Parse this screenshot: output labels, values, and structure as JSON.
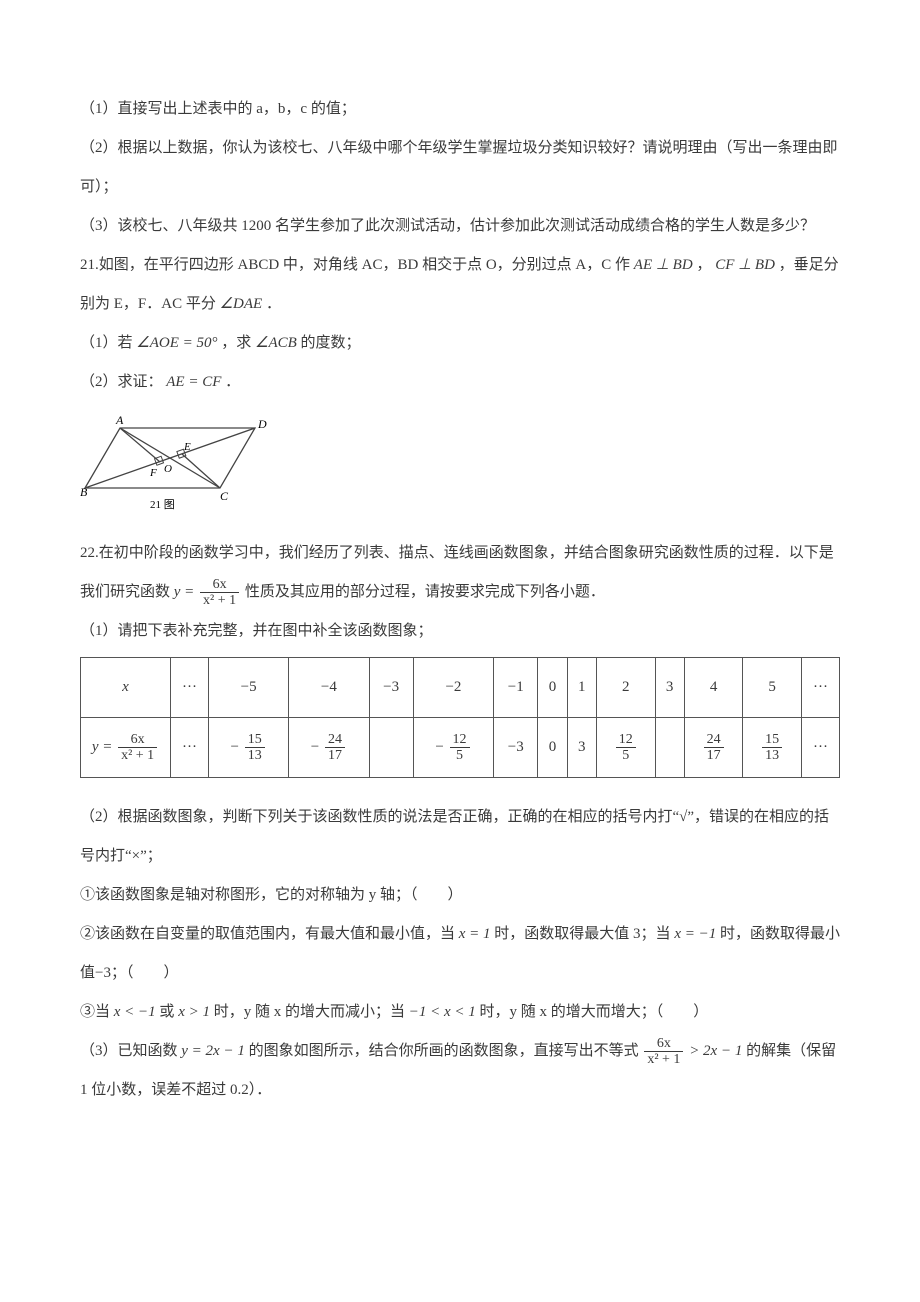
{
  "q20": {
    "p1": "（1）直接写出上述表中的 a，b，c 的值；",
    "p2": "（2）根据以上数据，你认为该校七、八年级中哪个年级学生掌握垃圾分类知识较好？请说明理由（写出一条理由即可）；",
    "p3": "（3）该校七、八年级共 1200 名学生参加了此次测试活动，估计参加此次测试活动成绩合格的学生人数是多少？"
  },
  "q21": {
    "intro_a": "21.如图，在平行四边形 ABCD 中，对角线 AC，BD 相交于点 O，分别过点 A，C 作 ",
    "intro_m1": "AE ⊥ BD",
    "intro_sep": "，",
    "intro_m2": "CF ⊥ BD",
    "intro_b": "，垂足分别为 E，F．AC 平分 ",
    "intro_m3": "∠DAE",
    "intro_end": "．",
    "p1a": "（1）若 ",
    "p1m": "∠AOE = 50°",
    "p1b": "，求 ",
    "p1m2": "∠ACB",
    "p1c": " 的度数；",
    "p2a": "（2）求证：",
    "p2m": "AE = CF",
    "p2b": "．",
    "diagram_label": "21 图"
  },
  "q22": {
    "intro_a": "22.在初中阶段的函数学习中，我们经历了列表、描点、连线画函数图象，并结合图象研究函数性质的过程．以下是我们研究函数 ",
    "formula_left": "y =",
    "formula_num": "6x",
    "formula_den": "x² + 1",
    "intro_b": " 性质及其应用的部分过程，请按要求完成下列各小题．",
    "p1": "（1）请把下表补充完整，并在图中补全该函数图象；",
    "table": {
      "row1_head": "x",
      "row1": [
        "···",
        "−5",
        "−4",
        "−3",
        "−2",
        "−1",
        "0",
        "1",
        "2",
        "3",
        "4",
        "5",
        "···"
      ],
      "row2_head_left": "y =",
      "row2_head_num": "6x",
      "row2_head_den": "x² + 1",
      "row2": [
        {
          "type": "text",
          "v": "···"
        },
        {
          "type": "frac",
          "num": "15",
          "den": "13",
          "neg": true
        },
        {
          "type": "frac",
          "num": "24",
          "den": "17",
          "neg": true
        },
        {
          "type": "text",
          "v": ""
        },
        {
          "type": "frac",
          "num": "12",
          "den": "5",
          "neg": true
        },
        {
          "type": "text",
          "v": "−3"
        },
        {
          "type": "text",
          "v": "0"
        },
        {
          "type": "text",
          "v": "3"
        },
        {
          "type": "frac",
          "num": "12",
          "den": "5",
          "neg": false
        },
        {
          "type": "text",
          "v": ""
        },
        {
          "type": "frac",
          "num": "24",
          "den": "17",
          "neg": false
        },
        {
          "type": "frac",
          "num": "15",
          "den": "13",
          "neg": false
        },
        {
          "type": "text",
          "v": "···"
        }
      ]
    },
    "p2": "（2）根据函数图象，判断下列关于该函数性质的说法是否正确，正确的在相应的括号内打“√”，错误的在相应的括号内打“×”；",
    "s1": "①该函数图象是轴对称图形，它的对称轴为 y 轴；（　　）",
    "s2a": "②该函数在自变量的取值范围内，有最大值和最小值，当 ",
    "s2m1": "x = 1",
    "s2b": " 时，函数取得最大值 3；当 ",
    "s2m2": "x = −1",
    "s2c": " 时，函数取得最小值−3；（　　）",
    "s3a": "③当 ",
    "s3m1": "x < −1",
    "s3b": " 或 ",
    "s3m2": "x > 1",
    "s3c": " 时，y 随 x 的增大而减小；当 ",
    "s3m3": "−1 < x < 1",
    "s3d": " 时，y 随 x 的增大而增大；（　　）",
    "p3a": "（3）已知函数 ",
    "p3m1": "y = 2x − 1",
    "p3b": " 的图象如图所示，结合你所画的函数图象，直接写出不等式 ",
    "p3num": "6x",
    "p3den": "x² + 1",
    "p3m2": " > 2x − 1",
    "p3c": " 的解集（保留 1 位小数，误差不超过 0.2）．"
  }
}
